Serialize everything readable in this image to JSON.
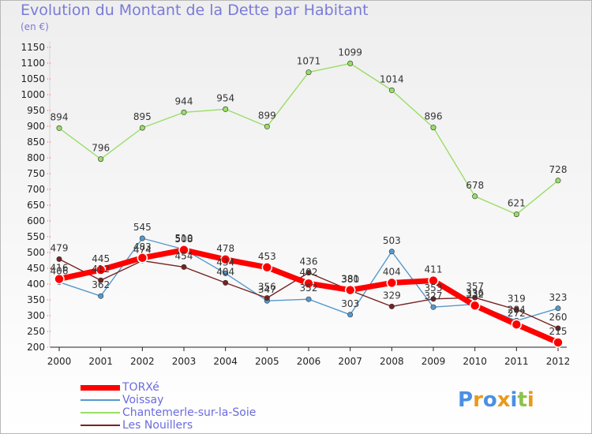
{
  "chart_data": {
    "type": "line",
    "title": "Evolution du Montant de la Dette par Habitant",
    "subtitle": "(en €)",
    "x": [
      "2000",
      "2001",
      "2002",
      "2003",
      "2004",
      "2005",
      "2006",
      "2007",
      "2008",
      "2009",
      "2010",
      "2011",
      "2012"
    ],
    "ylim": [
      200,
      1150
    ],
    "yticks": [
      200,
      250,
      300,
      350,
      400,
      450,
      500,
      550,
      600,
      650,
      700,
      750,
      800,
      850,
      900,
      950,
      1000,
      1050,
      1100,
      1150
    ],
    "grid": false,
    "legend_position": "bottom-left",
    "series": [
      {
        "name": "TORXé",
        "color": "#ff0000",
        "values": [
          416,
          445,
          483,
          508,
          478,
          453,
          402,
          381,
          404,
          411,
          332,
          272,
          215
        ]
      },
      {
        "name": "Voissay",
        "color": "#5599cc",
        "values": [
          406,
          362,
          545,
          510,
          434,
          347,
          352,
          303,
          503,
          327,
          336,
          284,
          323
        ]
      },
      {
        "name": "Chantemerle-sur-la-Soie",
        "color": "#99dd66",
        "values": [
          894,
          796,
          895,
          944,
          954,
          899,
          1071,
          1099,
          1014,
          896,
          678,
          621,
          728
        ]
      },
      {
        "name": "Les Nouillers",
        "color": "#772222",
        "values": [
          479,
          412,
          474,
          454,
          404,
          356,
          436,
          380,
          329,
          353,
          357,
          319,
          260
        ]
      }
    ]
  },
  "logo": {
    "text": "Proxiti",
    "colors": [
      "#4a90e2",
      "#e89a1a",
      "#4a90e2",
      "#e89a1a",
      "#4a90e2",
      "#8bc34a",
      "#e89a1a"
    ]
  }
}
